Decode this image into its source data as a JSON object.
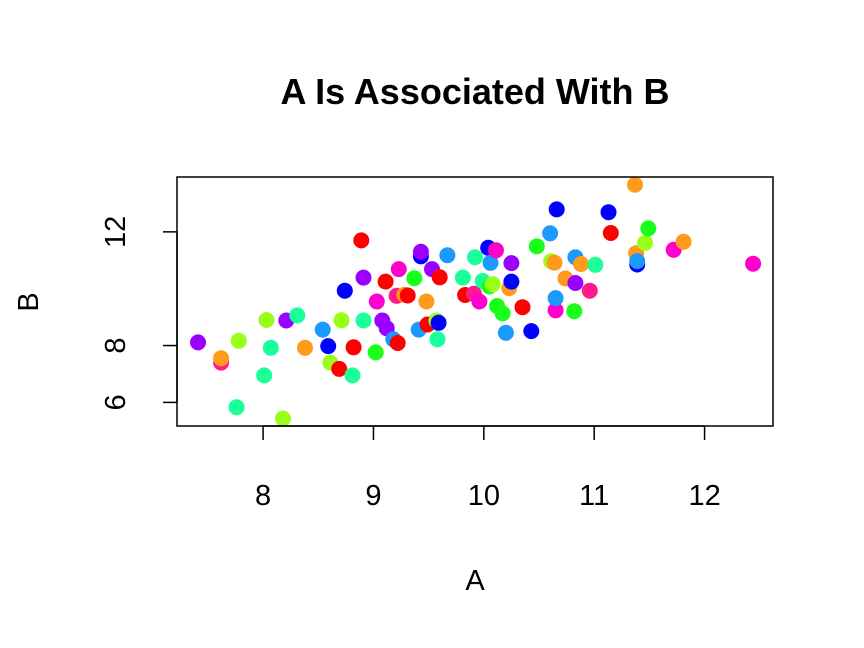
{
  "chart_data": {
    "type": "scatter",
    "title": "A Is Associated With B",
    "xlabel": "A",
    "ylabel": "B",
    "xlim": [
      7.22,
      12.62
    ],
    "ylim": [
      5.17,
      13.93
    ],
    "xticks": [
      8,
      9,
      10,
      11,
      12
    ],
    "yticks": [
      6,
      8,
      12
    ],
    "grid": false,
    "legend": "none",
    "point_colors_note": "rainbow hues",
    "points": [
      {
        "x": 7.41,
        "y": 8.11,
        "color": "#9900ff"
      },
      {
        "x": 7.62,
        "y": 7.4,
        "color": "#ff1a8c"
      },
      {
        "x": 7.62,
        "y": 7.55,
        "color": "#ff9a1a"
      },
      {
        "x": 7.76,
        "y": 5.83,
        "color": "#1aff9a"
      },
      {
        "x": 7.78,
        "y": 8.17,
        "color": "#99ff1a"
      },
      {
        "x": 8.01,
        "y": 6.95,
        "color": "#1aff9a"
      },
      {
        "x": 8.03,
        "y": 8.9,
        "color": "#99ff1a"
      },
      {
        "x": 8.07,
        "y": 7.92,
        "color": "#1aff9a"
      },
      {
        "x": 8.18,
        "y": 5.43,
        "color": "#99ff1a"
      },
      {
        "x": 8.21,
        "y": 8.88,
        "color": "#9900ff"
      },
      {
        "x": 8.31,
        "y": 9.06,
        "color": "#1aff9a"
      },
      {
        "x": 8.38,
        "y": 7.92,
        "color": "#ff9a1a"
      },
      {
        "x": 8.54,
        "y": 8.56,
        "color": "#1a9aff"
      },
      {
        "x": 8.59,
        "y": 7.98,
        "color": "#0000ff"
      },
      {
        "x": 8.61,
        "y": 7.4,
        "color": "#99ff1a"
      },
      {
        "x": 8.69,
        "y": 7.18,
        "color": "#ff0000"
      },
      {
        "x": 8.71,
        "y": 8.89,
        "color": "#99ff1a"
      },
      {
        "x": 8.74,
        "y": 9.93,
        "color": "#0000ff"
      },
      {
        "x": 8.81,
        "y": 6.95,
        "color": "#1aff9a"
      },
      {
        "x": 8.82,
        "y": 7.94,
        "color": "#ff0000"
      },
      {
        "x": 8.89,
        "y": 11.7,
        "color": "#ff0000"
      },
      {
        "x": 8.91,
        "y": 8.88,
        "color": "#1aff9a"
      },
      {
        "x": 8.91,
        "y": 10.39,
        "color": "#9900ff"
      },
      {
        "x": 9.02,
        "y": 7.76,
        "color": "#1aff1a"
      },
      {
        "x": 9.03,
        "y": 9.55,
        "color": "#ff00cc"
      },
      {
        "x": 9.08,
        "y": 8.88,
        "color": "#9900ff"
      },
      {
        "x": 9.11,
        "y": 10.25,
        "color": "#ff0000"
      },
      {
        "x": 9.12,
        "y": 8.61,
        "color": "#9900ff"
      },
      {
        "x": 9.18,
        "y": 8.22,
        "color": "#1a9aff"
      },
      {
        "x": 9.21,
        "y": 9.75,
        "color": "#ff1a8c"
      },
      {
        "x": 9.22,
        "y": 8.09,
        "color": "#ff0000"
      },
      {
        "x": 9.23,
        "y": 10.69,
        "color": "#ff00cc"
      },
      {
        "x": 9.28,
        "y": 9.79,
        "color": "#ff9a1a"
      },
      {
        "x": 9.31,
        "y": 9.76,
        "color": "#ff0000"
      },
      {
        "x": 9.37,
        "y": 10.37,
        "color": "#1aff1a"
      },
      {
        "x": 9.41,
        "y": 8.56,
        "color": "#1a9aff"
      },
      {
        "x": 9.43,
        "y": 11.14,
        "color": "#0000ff"
      },
      {
        "x": 9.43,
        "y": 11.3,
        "color": "#9900ff"
      },
      {
        "x": 9.48,
        "y": 9.55,
        "color": "#ff9a1a"
      },
      {
        "x": 9.49,
        "y": 8.74,
        "color": "#ff0000"
      },
      {
        "x": 9.53,
        "y": 10.69,
        "color": "#9900ff"
      },
      {
        "x": 9.57,
        "y": 8.88,
        "color": "#99ff1a"
      },
      {
        "x": 9.58,
        "y": 8.22,
        "color": "#1aff9a"
      },
      {
        "x": 9.59,
        "y": 8.8,
        "color": "#0000ff"
      },
      {
        "x": 9.6,
        "y": 10.4,
        "color": "#ff0000"
      },
      {
        "x": 9.67,
        "y": 11.18,
        "color": "#1a9aff"
      },
      {
        "x": 9.81,
        "y": 10.39,
        "color": "#1aff9a"
      },
      {
        "x": 9.83,
        "y": 9.78,
        "color": "#ff0000"
      },
      {
        "x": 9.91,
        "y": 9.82,
        "color": "#ff1a8c"
      },
      {
        "x": 9.92,
        "y": 11.11,
        "color": "#1aff9a"
      },
      {
        "x": 9.96,
        "y": 9.55,
        "color": "#ff00cc"
      },
      {
        "x": 9.99,
        "y": 10.27,
        "color": "#1aff9a"
      },
      {
        "x": 10.04,
        "y": 11.44,
        "color": "#0000ff"
      },
      {
        "x": 10.05,
        "y": 10.08,
        "color": "#1aff1a"
      },
      {
        "x": 10.06,
        "y": 10.91,
        "color": "#1a9aff"
      },
      {
        "x": 10.08,
        "y": 10.16,
        "color": "#99ff1a"
      },
      {
        "x": 10.11,
        "y": 11.35,
        "color": "#ff00cc"
      },
      {
        "x": 10.12,
        "y": 9.39,
        "color": "#1aff1a"
      },
      {
        "x": 10.17,
        "y": 9.13,
        "color": "#1aff1a"
      },
      {
        "x": 10.2,
        "y": 8.45,
        "color": "#1a9aff"
      },
      {
        "x": 10.23,
        "y": 10.02,
        "color": "#ff9a1a"
      },
      {
        "x": 10.25,
        "y": 10.25,
        "color": "#0000ff"
      },
      {
        "x": 10.25,
        "y": 10.9,
        "color": "#9900ff"
      },
      {
        "x": 10.35,
        "y": 9.35,
        "color": "#ff0000"
      },
      {
        "x": 10.43,
        "y": 8.51,
        "color": "#0000ff"
      },
      {
        "x": 10.48,
        "y": 11.49,
        "color": "#1aff1a"
      },
      {
        "x": 10.6,
        "y": 11.95,
        "color": "#1a9aff"
      },
      {
        "x": 10.61,
        "y": 10.96,
        "color": "#99ff1a"
      },
      {
        "x": 10.64,
        "y": 10.92,
        "color": "#ff9a1a"
      },
      {
        "x": 10.65,
        "y": 9.24,
        "color": "#ff00cc"
      },
      {
        "x": 10.65,
        "y": 9.67,
        "color": "#1a9aff"
      },
      {
        "x": 10.66,
        "y": 12.79,
        "color": "#0000ff"
      },
      {
        "x": 10.74,
        "y": 10.36,
        "color": "#ff9a1a"
      },
      {
        "x": 10.82,
        "y": 9.21,
        "color": "#1aff1a"
      },
      {
        "x": 10.83,
        "y": 10.2,
        "color": "#9900ff"
      },
      {
        "x": 10.83,
        "y": 11.11,
        "color": "#1a9aff"
      },
      {
        "x": 10.88,
        "y": 10.87,
        "color": "#ff9a1a"
      },
      {
        "x": 10.96,
        "y": 9.93,
        "color": "#ff1a8c"
      },
      {
        "x": 11.01,
        "y": 10.84,
        "color": "#1aff9a"
      },
      {
        "x": 11.15,
        "y": 11.96,
        "color": "#ff0000"
      },
      {
        "x": 11.13,
        "y": 12.69,
        "color": "#0000ff"
      },
      {
        "x": 11.37,
        "y": 13.66,
        "color": "#ff9a1a"
      },
      {
        "x": 11.38,
        "y": 11.25,
        "color": "#ff9a1a"
      },
      {
        "x": 11.39,
        "y": 10.85,
        "color": "#0000ff"
      },
      {
        "x": 11.39,
        "y": 10.97,
        "color": "#1a9aff"
      },
      {
        "x": 11.46,
        "y": 11.61,
        "color": "#99ff1a"
      },
      {
        "x": 11.49,
        "y": 12.12,
        "color": "#1aff1a"
      },
      {
        "x": 11.72,
        "y": 11.37,
        "color": "#ff00cc"
      },
      {
        "x": 11.81,
        "y": 11.65,
        "color": "#ff9a1a"
      },
      {
        "x": 12.44,
        "y": 10.88,
        "color": "#ff00cc"
      }
    ]
  }
}
